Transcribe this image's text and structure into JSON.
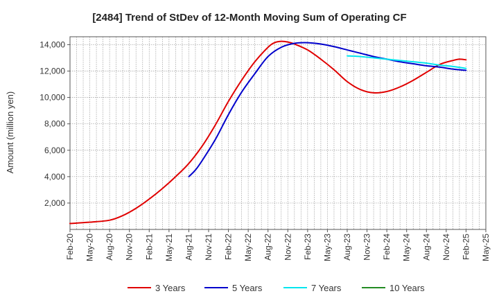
{
  "chart_data": {
    "type": "line",
    "title": "[2484]  Trend of StDev of 12-Month Moving Sum of Operating CF",
    "xlabel": "",
    "ylabel": "Amount (million yen)",
    "ylim": [
      0,
      14600
    ],
    "yticks": [
      2000,
      4000,
      6000,
      8000,
      10000,
      12000,
      14000
    ],
    "ytick_labels": [
      "2,000",
      "4,000",
      "6,000",
      "8,000",
      "10,000",
      "12,000",
      "14,000"
    ],
    "xlim_months": [
      0,
      63
    ],
    "xticks": [
      {
        "label": "Feb-20",
        "m": 0
      },
      {
        "label": "May-20",
        "m": 3
      },
      {
        "label": "Aug-20",
        "m": 6
      },
      {
        "label": "Nov-20",
        "m": 9
      },
      {
        "label": "Feb-21",
        "m": 12
      },
      {
        "label": "May-21",
        "m": 15
      },
      {
        "label": "Aug-21",
        "m": 18
      },
      {
        "label": "Nov-21",
        "m": 21
      },
      {
        "label": "Feb-22",
        "m": 24
      },
      {
        "label": "May-22",
        "m": 27
      },
      {
        "label": "Aug-22",
        "m": 30
      },
      {
        "label": "Nov-22",
        "m": 33
      },
      {
        "label": "Feb-23",
        "m": 36
      },
      {
        "label": "May-23",
        "m": 39
      },
      {
        "label": "Aug-23",
        "m": 42
      },
      {
        "label": "Nov-23",
        "m": 45
      },
      {
        "label": "Feb-24",
        "m": 48
      },
      {
        "label": "May-24",
        "m": 51
      },
      {
        "label": "Aug-24",
        "m": 54
      },
      {
        "label": "Nov-24",
        "m": 57
      },
      {
        "label": "Feb-25",
        "m": 60
      },
      {
        "label": "May-25",
        "m": 63
      }
    ],
    "grid": true,
    "legend_position": "bottom",
    "series": [
      {
        "name": "3 Years",
        "color": "#e00000",
        "points": [
          [
            0,
            450
          ],
          [
            3,
            550
          ],
          [
            6,
            700
          ],
          [
            8,
            1050
          ],
          [
            10,
            1600
          ],
          [
            12,
            2300
          ],
          [
            14,
            3100
          ],
          [
            16,
            4000
          ],
          [
            18,
            5000
          ],
          [
            20,
            6300
          ],
          [
            22,
            7900
          ],
          [
            24,
            9700
          ],
          [
            26,
            11300
          ],
          [
            28,
            12700
          ],
          [
            30,
            13800
          ],
          [
            31,
            14150
          ],
          [
            32,
            14250
          ],
          [
            33,
            14200
          ],
          [
            34,
            14050
          ],
          [
            36,
            13600
          ],
          [
            38,
            12900
          ],
          [
            40,
            12100
          ],
          [
            42,
            11200
          ],
          [
            44,
            10600
          ],
          [
            46,
            10350
          ],
          [
            48,
            10450
          ],
          [
            50,
            10800
          ],
          [
            52,
            11300
          ],
          [
            54,
            11900
          ],
          [
            56,
            12500
          ],
          [
            58,
            12800
          ],
          [
            59,
            12900
          ],
          [
            60,
            12850
          ]
        ]
      },
      {
        "name": "5 Years",
        "color": "#0000cc",
        "points": [
          [
            18,
            4000
          ],
          [
            19,
            4500
          ],
          [
            20,
            5200
          ],
          [
            22,
            6800
          ],
          [
            24,
            8700
          ],
          [
            26,
            10400
          ],
          [
            28,
            11800
          ],
          [
            30,
            13100
          ],
          [
            32,
            13800
          ],
          [
            34,
            14100
          ],
          [
            36,
            14150
          ],
          [
            38,
            14050
          ],
          [
            40,
            13850
          ],
          [
            42,
            13600
          ],
          [
            44,
            13350
          ],
          [
            46,
            13100
          ],
          [
            48,
            12900
          ],
          [
            50,
            12700
          ],
          [
            52,
            12550
          ],
          [
            54,
            12400
          ],
          [
            56,
            12300
          ],
          [
            58,
            12150
          ],
          [
            60,
            12050
          ]
        ]
      },
      {
        "name": "7 Years",
        "color": "#00e5ee",
        "points": [
          [
            42,
            13150
          ],
          [
            44,
            13100
          ],
          [
            46,
            13000
          ],
          [
            48,
            12900
          ],
          [
            50,
            12800
          ],
          [
            52,
            12700
          ],
          [
            54,
            12600
          ],
          [
            56,
            12450
          ],
          [
            58,
            12350
          ],
          [
            60,
            12200
          ]
        ]
      },
      {
        "name": "10 Years",
        "color": "#228b22",
        "points": []
      }
    ]
  }
}
